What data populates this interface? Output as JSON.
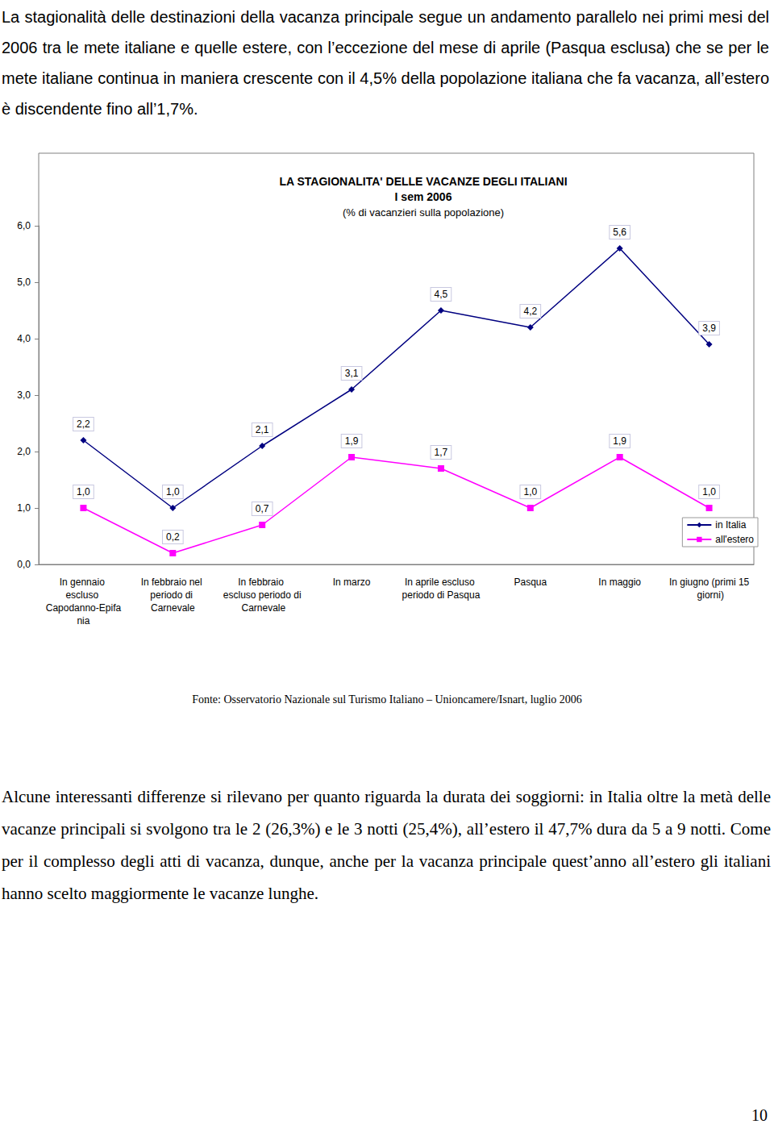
{
  "paragraphs": [
    "La stagionalità delle destinazioni della vacanza principale segue un andamento parallelo nei primi mesi del 2006 tra le mete italiane e quelle estere, con l’eccezione del mese di aprile (Pasqua esclusa) che se per le mete italiane continua in maniera crescente con il 4,5% della popolazione italiana che fa vacanza, all’estero è discendente fino all’1,7%.",
    "Alcune interessanti differenze si rilevano per quanto riguarda la durata dei soggiorni: in Italia oltre la metà delle vacanze principali si svolgono tra le 2 (26,3%) e le 3 notti (25,4%), all’estero il 47,7% dura da 5 a 9 notti. Come per il complesso degli atti di vacanza, dunque, anche per la vacanza principale quest’anno all’estero gli italiani hanno scelto maggiormente le vacanze lunghe."
  ],
  "chart_data": {
    "type": "line",
    "title": "LA STAGIONALITA' DELLE VACANZE DEGLI ITALIANI\nI sem 2006",
    "subtitle": "(% di vacanzieri sulla popolazione)",
    "categories": [
      "In gennaio escluso Capodanno-Epifania",
      "In febbraio nel periodo di Carnevale",
      "In febbraio escluso periodo di Carnevale",
      "In marzo",
      "In aprile escluso periodo di Pasqua",
      "Pasqua",
      "In maggio",
      "In giugno (primi 15 giorni)"
    ],
    "series": [
      {
        "name": "in Italia",
        "color": "#000080",
        "marker": "diamond",
        "line_style": "solid",
        "values": [
          2.2,
          1.0,
          2.1,
          3.1,
          4.5,
          4.2,
          5.6,
          3.9
        ],
        "value_labels": [
          "2,2",
          "1,0",
          "2,1",
          "3,1",
          "4,5",
          "4,2",
          "5,6",
          "3,9"
        ]
      },
      {
        "name": "all'estero",
        "color": "#ff00ff",
        "marker": "square",
        "line_style": "solid",
        "values": [
          1.0,
          0.2,
          0.7,
          1.9,
          1.7,
          1.0,
          1.9,
          1.0
        ],
        "value_labels": [
          "1,0",
          "0,2",
          "0,7",
          "1,9",
          "1,7",
          "1,0",
          "1,9",
          "1,0"
        ]
      }
    ],
    "ylim": [
      0,
      6
    ],
    "yticks": [
      {
        "value": 0,
        "label": "0,0"
      },
      {
        "value": 1,
        "label": "1,0"
      },
      {
        "value": 2,
        "label": "2,0"
      },
      {
        "value": 3,
        "label": "3,0"
      },
      {
        "value": 4,
        "label": "4,0"
      },
      {
        "value": 5,
        "label": "5,0"
      },
      {
        "value": 6,
        "label": "6,0"
      }
    ],
    "grid": false,
    "legend": "lower right",
    "data_labels": true
  },
  "source": "Fonte: Osservatorio Nazionale sul Turismo Italiano – Unioncamere/Isnart, luglio 2006",
  "page_number": 10
}
